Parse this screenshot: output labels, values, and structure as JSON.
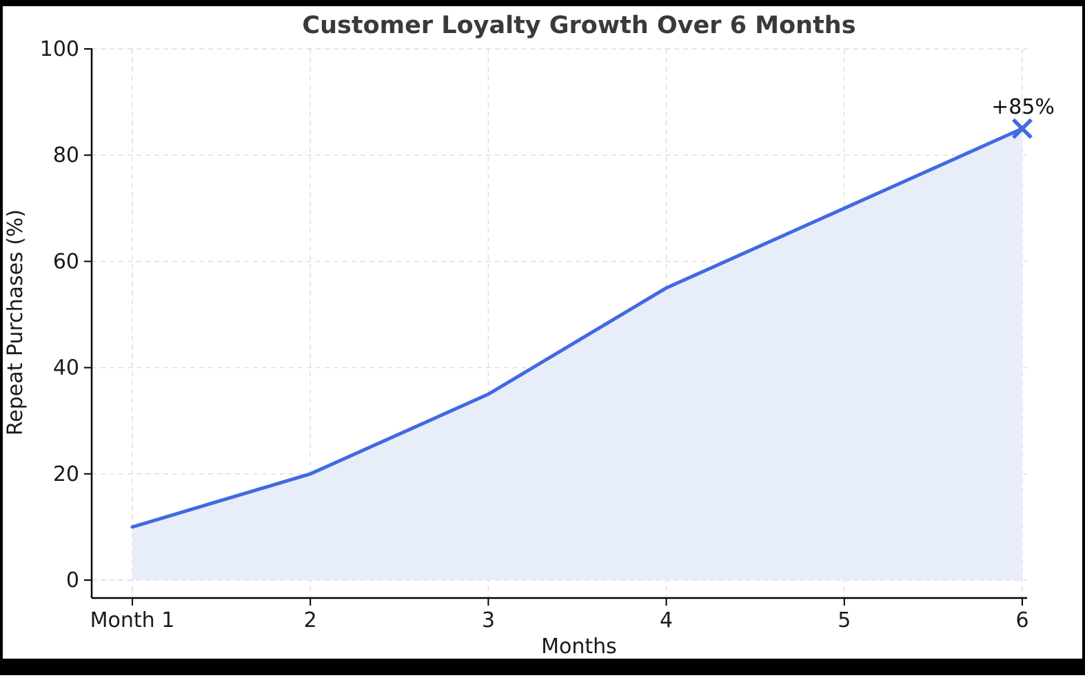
{
  "chart_data": {
    "type": "area",
    "title": "Customer Loyalty Growth Over 6 Months",
    "xlabel": "Months",
    "ylabel": "Repeat Purchases (%)",
    "categories": [
      "Month 1",
      "2",
      "3",
      "4",
      "5",
      "6"
    ],
    "x": [
      1,
      2,
      3,
      4,
      5,
      6
    ],
    "values": [
      10,
      20,
      35,
      55,
      70,
      85
    ],
    "ylim": [
      0,
      100
    ],
    "yticks": [
      0,
      20,
      40,
      60,
      80,
      100
    ],
    "grid": true,
    "grid_style": "dashed",
    "legend": "none",
    "marker_on_last_point": "x",
    "annotation": {
      "text": "+85%",
      "x": 6,
      "y": 85
    },
    "line_color": "#4169E1",
    "fill_color": "#E8EDFA",
    "grid_color": "#DCDCDC",
    "spine_color": "#000000",
    "frame_color": "#000000"
  }
}
